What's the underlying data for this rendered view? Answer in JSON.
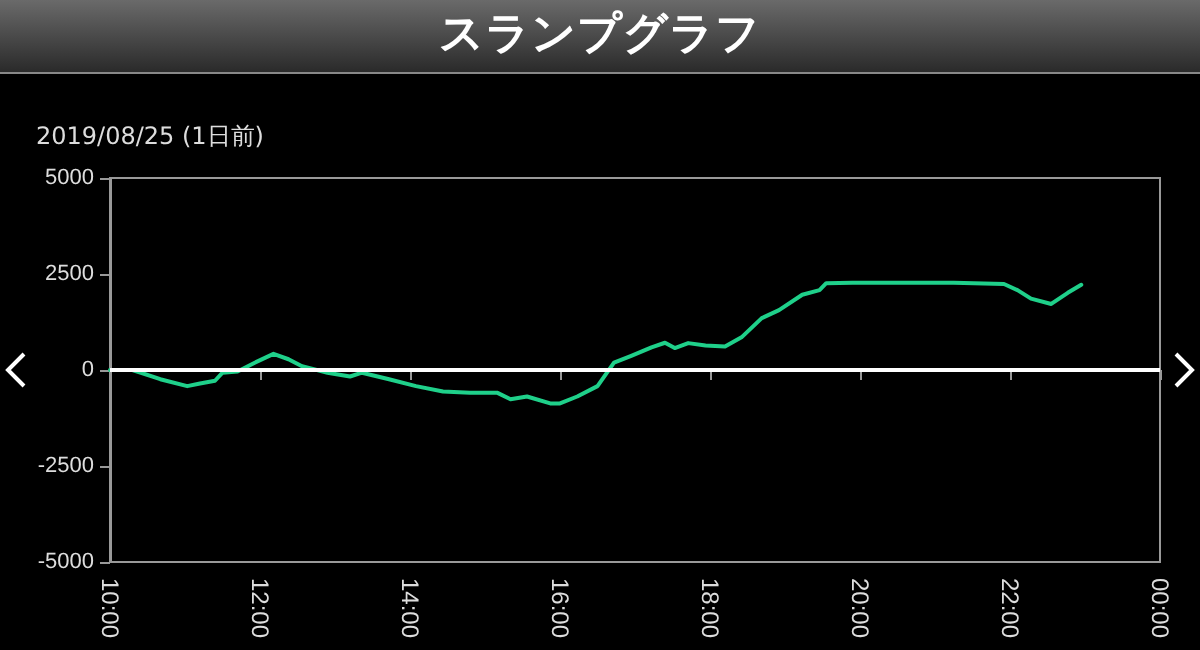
{
  "chart_data": {
    "type": "line",
    "title": "スランプグラフ",
    "subtitle": "2019/08/25 (1日前)",
    "x": [
      10.0,
      10.3,
      10.67,
      11.03,
      11.2,
      11.4,
      11.5,
      11.7,
      11.93,
      12.18,
      12.38,
      12.56,
      12.9,
      13.2,
      13.36,
      13.72,
      14.08,
      14.44,
      14.8,
      15.16,
      15.34,
      15.56,
      15.87,
      16.0,
      16.23,
      16.5,
      16.72,
      16.95,
      17.22,
      17.4,
      17.53,
      17.71,
      17.94,
      18.2,
      18.42,
      18.69,
      18.92,
      19.23,
      19.46,
      19.55,
      19.9,
      21.25,
      21.92,
      22.1,
      22.28,
      22.55,
      22.77,
      22.95
    ],
    "series": [
      {
        "color": "#1fd08a",
        "values": [
          0,
          0,
          -240,
          -420,
          -350,
          -280,
          -70,
          -40,
          190,
          420,
          280,
          100,
          -70,
          -170,
          -70,
          -240,
          -420,
          -560,
          -590,
          -590,
          -760,
          -690,
          -870,
          -870,
          -690,
          -420,
          190,
          370,
          590,
          710,
          570,
          700,
          640,
          610,
          850,
          1350,
          1560,
          1960,
          2080,
          2260,
          2270,
          2270,
          2240,
          2080,
          1860,
          1720,
          2010,
          2220
        ]
      }
    ],
    "xlim": [
      10,
      24
    ],
    "xticks": [
      {
        "value": 10,
        "label": "10:00"
      },
      {
        "value": 12,
        "label": "12:00"
      },
      {
        "value": 14,
        "label": "14:00"
      },
      {
        "value": 16,
        "label": "16:00"
      },
      {
        "value": 18,
        "label": "18:00"
      },
      {
        "value": 20,
        "label": "20:00"
      },
      {
        "value": 22,
        "label": "22:00"
      },
      {
        "value": 24,
        "label": "00:00"
      }
    ],
    "ylim": [
      -5000,
      5000
    ],
    "yticks": [
      -5000,
      -2500,
      0,
      2500,
      5000
    ],
    "ref_lines": [
      {
        "axis": "y",
        "value": 0,
        "color": "#ffffff"
      }
    ],
    "grid": false,
    "marker": "none",
    "line_style": "solid"
  }
}
